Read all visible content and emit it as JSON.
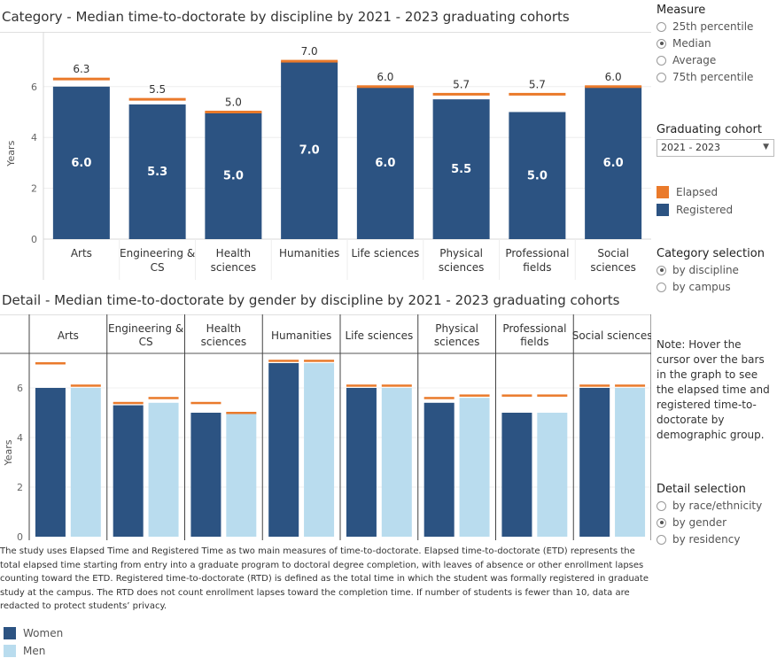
{
  "category_title": "Category -  Median time-to-doctorate  by discipline by 2021 - 2023 graduating cohorts",
  "detail_title": "Detail - Median time-to-doctorate by gender by discipline by 2021 - 2023 graduating cohorts",
  "measure": {
    "heading": "Measure",
    "options": [
      "25th percentile",
      "Median",
      "Average",
      "75th percentile"
    ],
    "selected": "Median"
  },
  "cohort": {
    "heading": "Graduating cohort",
    "value": "2021 - 2023"
  },
  "legend_top": {
    "elapsed": "Elapsed",
    "registered": "Registered"
  },
  "category_selection": {
    "heading": "Category selection",
    "options": [
      "by discipline",
      "by campus"
    ],
    "selected": "by discipline"
  },
  "note": "Note: Hover the cursor over the bars in the graph to see the elapsed time and registered time-to-doctorate by demographic group.",
  "detail_selection": {
    "heading": "Detail selection",
    "options": [
      "by race/ethnicity",
      "by gender",
      "by residency"
    ],
    "selected": "by gender"
  },
  "footnote": "The study uses Elapsed Time and Registered Time as two main measures of time-to-doctorate.  Elapsed time-to-doctorate (ETD) represents the total elapsed time starting from entry into a graduate program to doctoral degree completion, with leaves of absence or other enrollment lapses counting toward the ETD. Registered time-to-doctorate (RTD) is defined as the total time in which the student was formally registered in graduate study at the campus. The RTD does not count enrollment lapses toward the completion time. If number of students is fewer than 10, data are redacted to protect students’ privacy.",
  "legend_bottom": {
    "women": "Women",
    "men": "Men"
  },
  "colors": {
    "registered": "#2c5382",
    "elapsed": "#ea7a2b",
    "women": "#2c5382",
    "men": "#b9dcee"
  },
  "chart_data": [
    {
      "type": "bar",
      "title": "Category -  Median time-to-doctorate  by discipline by 2021 - 2023 graduating cohorts",
      "ylabel": "Years",
      "ylim": [
        0,
        7.5
      ],
      "yticks": [
        0,
        2,
        4,
        6
      ],
      "categories": [
        "Arts",
        "Engineering & CS",
        "Health sciences",
        "Humanities",
        "Life sciences",
        "Physical sciences",
        "Professional fields",
        "Social sciences"
      ],
      "category_lines": [
        [
          "Arts"
        ],
        [
          "Engineering &",
          "CS"
        ],
        [
          "Health",
          "sciences"
        ],
        [
          "Humanities"
        ],
        [
          "Life sciences"
        ],
        [
          "Physical",
          "sciences"
        ],
        [
          "Professional",
          "fields"
        ],
        [
          "Social",
          "sciences"
        ]
      ],
      "series": [
        {
          "name": "Registered",
          "values": [
            6.0,
            5.3,
            5.0,
            7.0,
            6.0,
            5.5,
            5.0,
            6.0
          ]
        },
        {
          "name": "Elapsed",
          "values": [
            6.3,
            5.5,
            5.0,
            7.0,
            6.0,
            5.7,
            5.7,
            6.0
          ]
        }
      ],
      "registered_labels": [
        "6.0",
        "5.3",
        "5.0",
        "7.0",
        "6.0",
        "5.5",
        "5.0",
        "6.0"
      ],
      "elapsed_labels": [
        "6.3",
        "5.5",
        "5.0",
        "7.0",
        "6.0",
        "5.7",
        "5.7",
        "6.0"
      ]
    },
    {
      "type": "bar",
      "title": "Detail - Median time-to-doctorate by gender by discipline by 2021 - 2023 graduating cohorts",
      "ylabel": "Years",
      "ylim": [
        0,
        7.5
      ],
      "yticks": [
        0,
        2,
        4,
        6
      ],
      "categories": [
        "Arts",
        "Engineering & CS",
        "Health sciences",
        "Humanities",
        "Life sciences",
        "Physical sciences",
        "Professional fields",
        "Social sciences"
      ],
      "category_lines": [
        [
          "Arts"
        ],
        [
          "Engineering &",
          "CS"
        ],
        [
          "Health",
          "sciences"
        ],
        [
          "Humanities"
        ],
        [
          "Life sciences"
        ],
        [
          "Physical",
          "sciences"
        ],
        [
          "Professional",
          "fields"
        ],
        [
          "Social sciences"
        ]
      ],
      "series": [
        {
          "name": "Women",
          "registered": [
            6.0,
            5.3,
            5.0,
            7.0,
            6.0,
            5.4,
            5.0,
            6.0
          ],
          "elapsed": [
            7.0,
            5.4,
            5.4,
            7.1,
            6.1,
            5.6,
            5.7,
            6.1
          ]
        },
        {
          "name": "Men",
          "registered": [
            6.0,
            5.4,
            5.0,
            7.0,
            6.0,
            5.6,
            5.0,
            6.0
          ],
          "elapsed": [
            6.1,
            5.6,
            5.0,
            7.1,
            6.1,
            5.7,
            5.7,
            6.1
          ]
        }
      ]
    }
  ]
}
